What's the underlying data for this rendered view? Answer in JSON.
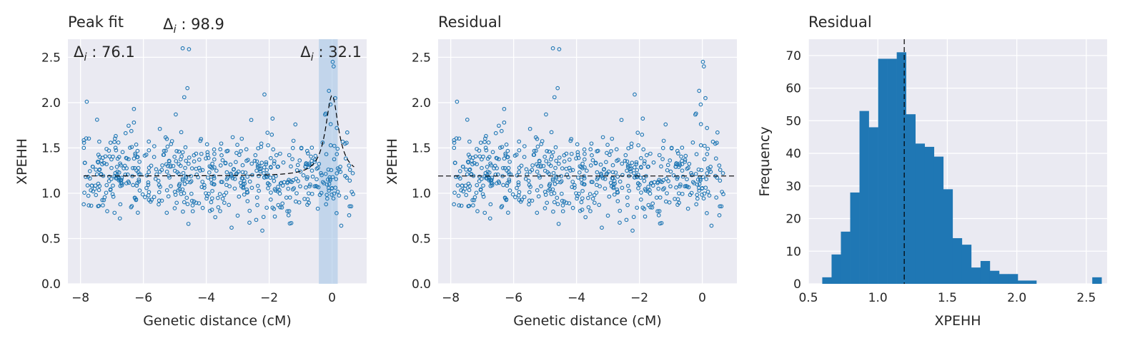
{
  "chart_data": [
    {
      "id": "peak",
      "type": "scatter",
      "title": "Peak fit",
      "xlabel": "Genetic distance (cM)",
      "ylabel": "XPEHH",
      "xlim": [
        -8.4,
        1.1
      ],
      "ylim": [
        0.0,
        2.7
      ],
      "xticks": [
        -8,
        -6,
        -4,
        -2,
        0
      ],
      "xtick_labels": [
        "−8",
        "−6",
        "−4",
        "−2",
        "0"
      ],
      "yticks": [
        0.0,
        0.5,
        1.0,
        1.5,
        2.0,
        2.5
      ],
      "ytick_labels": [
        "0.0",
        "0.5",
        "1.0",
        "1.5",
        "2.0",
        "2.5"
      ],
      "grid": true,
      "baseline": 1.19,
      "shaded_region": [
        -0.42,
        0.18
      ],
      "peak_center": 0.0,
      "peak_height": 2.08,
      "annotations": [
        {
          "text": "Δi : 98.9",
          "x": -4.4,
          "position": "above-axes"
        },
        {
          "text": "Δi : 76.1",
          "position": "top-left"
        },
        {
          "text": "Δi : 32.1",
          "position": "top-right"
        }
      ],
      "point_generation": {
        "n": 600,
        "seed": 7,
        "x_range": [
          -7.9,
          0.7
        ]
      },
      "extra_points": [
        {
          "x": -4.75,
          "y": 2.6
        },
        {
          "x": -4.55,
          "y": 2.59
        },
        {
          "x": -4.6,
          "y": 2.16
        },
        {
          "x": -4.7,
          "y": 2.06
        },
        {
          "x": -7.8,
          "y": 2.01
        },
        {
          "x": -6.3,
          "y": 1.93
        },
        {
          "x": -2.15,
          "y": 2.09
        },
        {
          "x": 0.02,
          "y": 2.45
        },
        {
          "x": 0.05,
          "y": 2.4
        },
        {
          "x": -0.1,
          "y": 2.13
        },
        {
          "x": 0.1,
          "y": 2.05
        },
        {
          "x": -0.2,
          "y": 1.88
        },
        {
          "x": 0.15,
          "y": 1.72
        },
        {
          "x": -0.05,
          "y": 1.98
        }
      ]
    },
    {
      "id": "resid",
      "type": "scatter",
      "title": "Residual",
      "xlabel": "Genetic distance (cM)",
      "ylabel": "XPEHH",
      "xlim": [
        -8.4,
        1.1
      ],
      "ylim": [
        0.0,
        2.7
      ],
      "xticks": [
        -8,
        -6,
        -4,
        -2,
        0
      ],
      "xtick_labels": [
        "−8",
        "−6",
        "−4",
        "−2",
        "0"
      ],
      "yticks": [
        0.0,
        0.5,
        1.0,
        1.5,
        2.0,
        2.5
      ],
      "ytick_labels": [
        "0.0",
        "0.5",
        "1.0",
        "1.5",
        "2.0",
        "2.5"
      ],
      "grid": true,
      "baseline": 1.19
    },
    {
      "id": "hist",
      "type": "bar",
      "title": "Residual",
      "xlabel": "XPEHH",
      "ylabel": "Frequency",
      "xlim": [
        0.5,
        2.65
      ],
      "ylim": [
        0,
        75
      ],
      "xticks": [
        0.5,
        1.0,
        1.5,
        2.0,
        2.5
      ],
      "xtick_labels": [
        "0.5",
        "1.0",
        "1.5",
        "2.0",
        "2.5"
      ],
      "yticks": [
        0,
        10,
        20,
        30,
        40,
        50,
        60,
        70
      ],
      "ytick_labels": [
        "0",
        "10",
        "20",
        "30",
        "40",
        "50",
        "60",
        "70"
      ],
      "grid": true,
      "vline": 1.19,
      "bin_start": 0.6,
      "bin_width": 0.067,
      "counts": [
        2,
        9,
        16,
        28,
        53,
        48,
        69,
        69,
        71,
        52,
        43,
        42,
        39,
        29,
        14,
        12,
        5,
        7,
        4,
        3,
        3,
        1,
        1,
        0,
        0,
        0,
        0,
        0,
        0,
        2
      ]
    }
  ],
  "colors": {
    "background": "#eaeaf2",
    "grid": "#ffffff",
    "marker": "#1f77b4",
    "bar": "#1f77b4",
    "shade": "#a6c7e6",
    "line": "#000000"
  }
}
